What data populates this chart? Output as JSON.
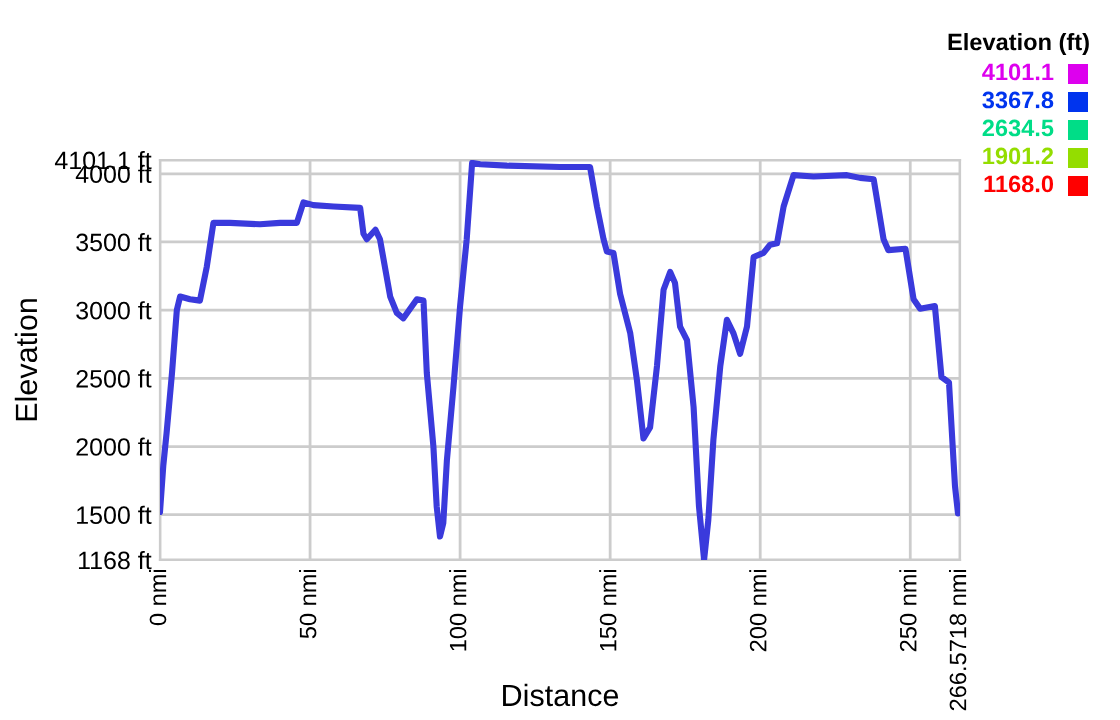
{
  "chart_data": {
    "type": "line",
    "xlabel": "Distance",
    "ylabel": "Elevation",
    "clabel": "Elevation (ft)",
    "cticks": [
      {
        "value": 4101.1,
        "label": "4101.1"
      },
      {
        "value": 3367.8,
        "label": "3367.8"
      },
      {
        "value": 2634.5,
        "label": "2634.5"
      },
      {
        "value": 1901.2,
        "label": "1901.2"
      },
      {
        "value": 1168,
        "label": "1168.0"
      }
    ],
    "xlim": [
      0,
      266.5718
    ],
    "ylim": [
      1168,
      4101.1
    ],
    "xticks": [
      {
        "value": 0,
        "label": "0 nmi"
      },
      {
        "value": 50,
        "label": "50 nmi"
      },
      {
        "value": 100,
        "label": "100 nmi"
      },
      {
        "value": 150,
        "label": "150 nmi"
      },
      {
        "value": 200,
        "label": "200 nmi"
      },
      {
        "value": 250,
        "label": "250 nmi"
      },
      {
        "value": 266.5718,
        "label": "266.5718 nmi"
      }
    ],
    "yticks": [
      {
        "value": 1168,
        "label": "1168 ft"
      },
      {
        "value": 1500,
        "label": "1500 ft"
      },
      {
        "value": 2000,
        "label": "2000 ft"
      },
      {
        "value": 2500,
        "label": "2500 ft"
      },
      {
        "value": 3000,
        "label": "3000 ft"
      },
      {
        "value": 3500,
        "label": "3500 ft"
      },
      {
        "value": 4000,
        "label": "4000 ft"
      },
      {
        "value": 4101.1,
        "label": "4101.1 ft"
      }
    ],
    "grid": true,
    "series": [
      {
        "color": "#3a3adc",
        "x": [
          0,
          1.1,
          2.2,
          4,
          5.6,
          6.7,
          10,
          13.3,
          15.6,
          17.8,
          23.3,
          33.3,
          40,
          45.6,
          47.8,
          51.1,
          57.8,
          66.7,
          67.8,
          68.9,
          71.8,
          73.3,
          76.7,
          78.9,
          81.1,
          85.6,
          87.8,
          88.9,
          91.1,
          92.2,
          93.3,
          94.4,
          95.6,
          97.8,
          100,
          102.2,
          104,
          106.7,
          115.6,
          133.3,
          143.3,
          145.6,
          147.8,
          148.9,
          151.1,
          153.3,
          156.7,
          158.9,
          161.1,
          163.3,
          165.6,
          167.8,
          170,
          171.6,
          173.3,
          175.6,
          177.8,
          179.6,
          181.3,
          182.7,
          184.4,
          186.7,
          188.9,
          191.1,
          193.3,
          195.6,
          197.8,
          201.1,
          203.3,
          205.6,
          207.8,
          211.1,
          217.8,
          228.9,
          233.3,
          237.8,
          241.1,
          242.7,
          248.4,
          251.1,
          253.3,
          258.2,
          260.4,
          262.9,
          264.9,
          265.9,
          266.5718
        ],
        "values": [
          1520,
          1860,
          2100,
          2540,
          3000,
          3100,
          3080,
          3070,
          3320,
          3640,
          3640,
          3630,
          3640,
          3640,
          3790,
          3770,
          3760,
          3750,
          3560,
          3520,
          3590,
          3520,
          3100,
          2980,
          2940,
          3080,
          3070,
          2540,
          2000,
          1560,
          1340,
          1440,
          1900,
          2440,
          3030,
          3520,
          4080,
          4070,
          4060,
          4050,
          4050,
          3760,
          3520,
          3430,
          3420,
          3120,
          2830,
          2490,
          2060,
          2140,
          2590,
          3150,
          3280,
          3200,
          2880,
          2780,
          2290,
          1560,
          1170,
          1460,
          2050,
          2590,
          2930,
          2830,
          2680,
          2880,
          3390,
          3420,
          3480,
          3490,
          3760,
          3990,
          3980,
          3990,
          3970,
          3960,
          3520,
          3440,
          3450,
          3080,
          3010,
          3030,
          2510,
          2470,
          1710,
          1510,
          1520
        ]
      }
    ]
  }
}
